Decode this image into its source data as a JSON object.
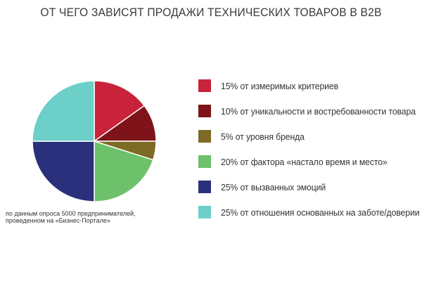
{
  "chart_data": {
    "type": "pie",
    "title": "ОТ ЧЕГО ЗАВИСЯТ ПРОДАЖИ ТЕХНИЧЕСКИХ ТОВАРОВ В B2B",
    "legend_position": "right",
    "slices": [
      {
        "label": "15% от измеримых критериев",
        "value": 15,
        "color": "#c8233a"
      },
      {
        "label": "10% от уникальности и востребованности товара",
        "value": 10,
        "color": "#7e1419"
      },
      {
        "label": "5% от уровня бренда",
        "value": 5,
        "color": "#7d6a24"
      },
      {
        "label": "20% от фактора «настало время и место»",
        "value": 20,
        "color": "#6cc16a"
      },
      {
        "label": "25% от вызванных эмоций",
        "value": 25,
        "color": "#2b307c"
      },
      {
        "label": "25% от отношения основанных на заботе/доверии",
        "value": 25,
        "color": "#6ccfc8"
      }
    ],
    "note_lines": [
      "по данным опроса 5000 предпринимателей,",
      "проведенном на «Бизнес-Портале»"
    ]
  }
}
